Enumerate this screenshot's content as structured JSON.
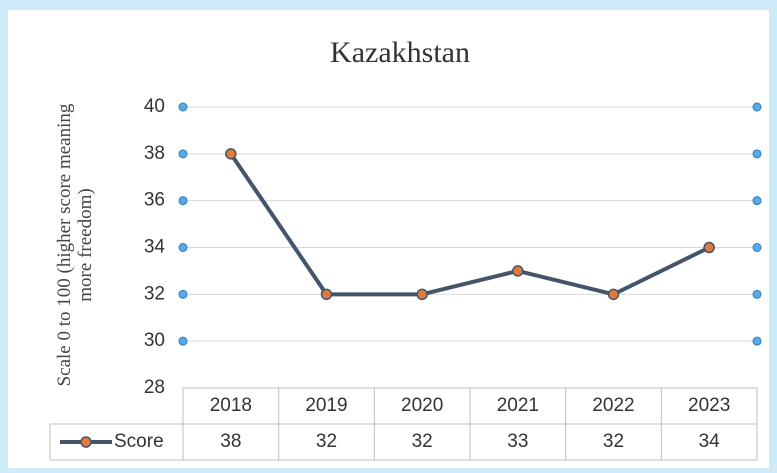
{
  "chart_data": {
    "type": "line",
    "title": "Kazakhstan",
    "ylabel": "Scale 0 to 100 (higher score meaning more freedom)",
    "categories": [
      "2018",
      "2019",
      "2020",
      "2021",
      "2022",
      "2023"
    ],
    "series": [
      {
        "name": "Score",
        "color": "#44546a",
        "marker_color": "#e07b39",
        "values": [
          38,
          32,
          32,
          33,
          32,
          34
        ]
      }
    ],
    "ylim": [
      28,
      40
    ],
    "yticks": [
      28,
      30,
      32,
      34,
      36,
      38,
      40
    ],
    "grid": true,
    "data_table": true
  }
}
